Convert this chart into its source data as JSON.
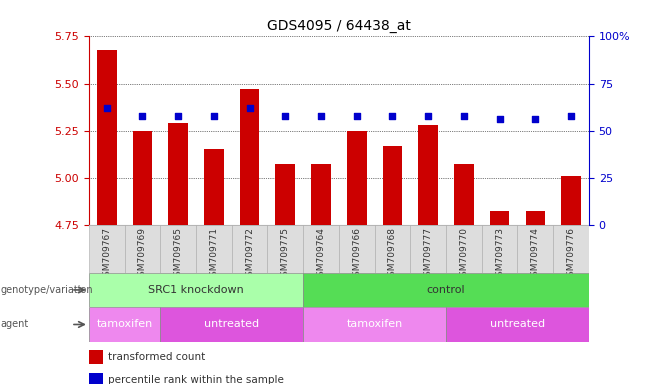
{
  "title": "GDS4095 / 64438_at",
  "samples": [
    "GSM709767",
    "GSM709769",
    "GSM709765",
    "GSM709771",
    "GSM709772",
    "GSM709775",
    "GSM709764",
    "GSM709766",
    "GSM709768",
    "GSM709777",
    "GSM709770",
    "GSM709773",
    "GSM709774",
    "GSM709776"
  ],
  "transformed_count": [
    5.68,
    5.25,
    5.29,
    5.15,
    5.47,
    5.07,
    5.07,
    5.25,
    5.17,
    5.28,
    5.07,
    4.82,
    4.82,
    5.01
  ],
  "percentile_rank": [
    62,
    58,
    58,
    58,
    62,
    58,
    58,
    58,
    58,
    58,
    58,
    56,
    56,
    58
  ],
  "ylim_left": [
    4.75,
    5.75
  ],
  "ylim_right": [
    0,
    100
  ],
  "yticks_left": [
    4.75,
    5.0,
    5.25,
    5.5,
    5.75
  ],
  "yticks_right": [
    0,
    25,
    50,
    75,
    100
  ],
  "bar_color": "#cc0000",
  "dot_color": "#0000cc",
  "bg_color": "#ffffff",
  "genotype_groups": [
    {
      "label": "SRC1 knockdown",
      "start": 0,
      "end": 6,
      "color": "#aaffaa"
    },
    {
      "label": "control",
      "start": 6,
      "end": 14,
      "color": "#55dd55"
    }
  ],
  "agent_groups": [
    {
      "label": "tamoxifen",
      "start": 0,
      "end": 2,
      "color": "#ee88ee"
    },
    {
      "label": "untreated",
      "start": 2,
      "end": 6,
      "color": "#dd55dd"
    },
    {
      "label": "tamoxifen",
      "start": 6,
      "end": 10,
      "color": "#ee88ee"
    },
    {
      "label": "untreated",
      "start": 10,
      "end": 14,
      "color": "#dd55dd"
    }
  ],
  "legend_items": [
    {
      "label": "transformed count",
      "color": "#cc0000"
    },
    {
      "label": "percentile rank within the sample",
      "color": "#0000cc"
    }
  ],
  "title_color": "#000000",
  "left_axis_color": "#cc0000",
  "right_axis_color": "#0000cc",
  "label_color": "#555555",
  "xticklabel_bg": "#dddddd"
}
